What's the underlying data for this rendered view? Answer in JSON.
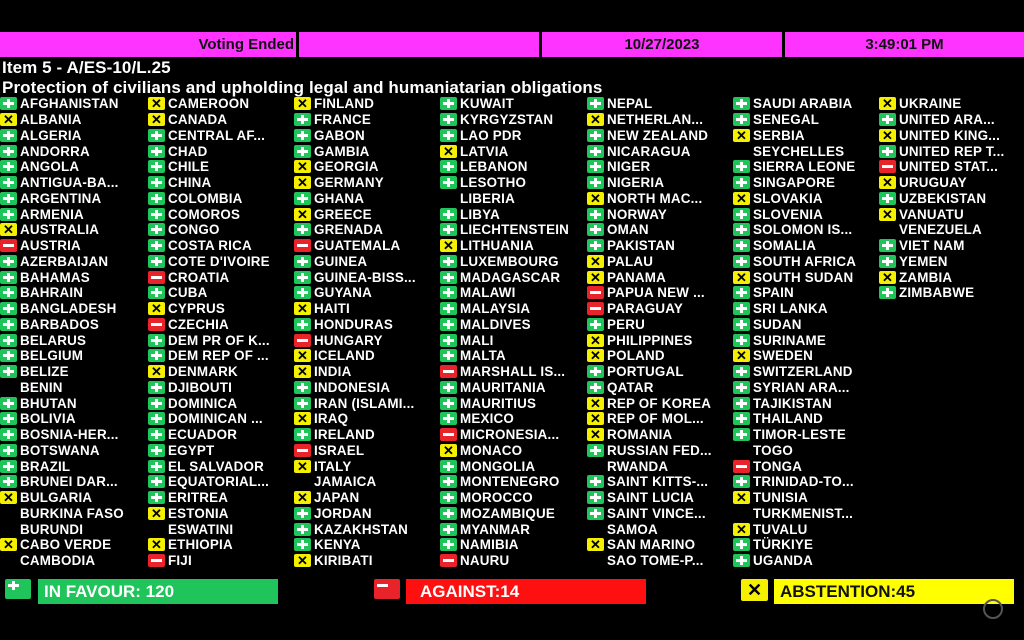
{
  "header": {
    "status": "Voting Ended",
    "blank": "",
    "date": "10/27/2023",
    "time": "3:49:01 PM"
  },
  "item": "Item 5 - A/ES-10/L.25",
  "resolution_title": "Protection of civilians and upholding legal and humaniatarian obligations",
  "vote_icons": {
    "Y": "plus-icon",
    "N": "minus-icon",
    "A": "x-icon"
  },
  "colors": {
    "header": "#ff33ff",
    "favour": "#1fc45a",
    "against": "#e8242a",
    "abstention": "#f4f000"
  },
  "columns": [
    [
      {
        "name": "AFGHANISTAN",
        "vote": "Y"
      },
      {
        "name": "ALBANIA",
        "vote": "A"
      },
      {
        "name": "ALGERIA",
        "vote": "Y"
      },
      {
        "name": "ANDORRA",
        "vote": "Y"
      },
      {
        "name": "ANGOLA",
        "vote": "Y"
      },
      {
        "name": "ANTIGUA-BA...",
        "vote": "Y"
      },
      {
        "name": "ARGENTINA",
        "vote": "Y"
      },
      {
        "name": "ARMENIA",
        "vote": "Y"
      },
      {
        "name": "AUSTRALIA",
        "vote": "A"
      },
      {
        "name": "AUSTRIA",
        "vote": "N"
      },
      {
        "name": "AZERBAIJAN",
        "vote": "Y"
      },
      {
        "name": "BAHAMAS",
        "vote": "Y"
      },
      {
        "name": "BAHRAIN",
        "vote": "Y"
      },
      {
        "name": "BANGLADESH",
        "vote": "Y"
      },
      {
        "name": "BARBADOS",
        "vote": "Y"
      },
      {
        "name": "BELARUS",
        "vote": "Y"
      },
      {
        "name": "BELGIUM",
        "vote": "Y"
      },
      {
        "name": "BELIZE",
        "vote": "Y"
      },
      {
        "name": "BENIN",
        "vote": ""
      },
      {
        "name": "BHUTAN",
        "vote": "Y"
      },
      {
        "name": "BOLIVIA",
        "vote": "Y"
      },
      {
        "name": "BOSNIA-HER...",
        "vote": "Y"
      },
      {
        "name": "BOTSWANA",
        "vote": "Y"
      },
      {
        "name": "BRAZIL",
        "vote": "Y"
      },
      {
        "name": "BRUNEI DAR...",
        "vote": "Y"
      },
      {
        "name": "BULGARIA",
        "vote": "A"
      },
      {
        "name": "BURKINA FASO",
        "vote": ""
      },
      {
        "name": "BURUNDI",
        "vote": ""
      },
      {
        "name": "CABO VERDE",
        "vote": "A"
      },
      {
        "name": "CAMBODIA",
        "vote": ""
      }
    ],
    [
      {
        "name": "CAMEROON",
        "vote": "A"
      },
      {
        "name": "CANADA",
        "vote": "A"
      },
      {
        "name": "CENTRAL AF...",
        "vote": "Y"
      },
      {
        "name": "CHAD",
        "vote": "Y"
      },
      {
        "name": "CHILE",
        "vote": "Y"
      },
      {
        "name": "CHINA",
        "vote": "Y"
      },
      {
        "name": "COLOMBIA",
        "vote": "Y"
      },
      {
        "name": "COMOROS",
        "vote": "Y"
      },
      {
        "name": "CONGO",
        "vote": "Y"
      },
      {
        "name": "COSTA RICA",
        "vote": "Y"
      },
      {
        "name": "COTE D'IVOIRE",
        "vote": "Y"
      },
      {
        "name": "CROATIA",
        "vote": "N"
      },
      {
        "name": "CUBA",
        "vote": "Y"
      },
      {
        "name": "CYPRUS",
        "vote": "A"
      },
      {
        "name": "CZECHIA",
        "vote": "N"
      },
      {
        "name": "DEM PR OF K...",
        "vote": "Y"
      },
      {
        "name": "DEM REP OF ...",
        "vote": "Y"
      },
      {
        "name": "DENMARK",
        "vote": "A"
      },
      {
        "name": "DJIBOUTI",
        "vote": "Y"
      },
      {
        "name": "DOMINICA",
        "vote": "Y"
      },
      {
        "name": "DOMINICAN ...",
        "vote": "Y"
      },
      {
        "name": "ECUADOR",
        "vote": "Y"
      },
      {
        "name": "EGYPT",
        "vote": "Y"
      },
      {
        "name": "EL SALVADOR",
        "vote": "Y"
      },
      {
        "name": "EQUATORIAL...",
        "vote": "Y"
      },
      {
        "name": "ERITREA",
        "vote": "Y"
      },
      {
        "name": "ESTONIA",
        "vote": "A"
      },
      {
        "name": "ESWATINI",
        "vote": ""
      },
      {
        "name": "ETHIOPIA",
        "vote": "A"
      },
      {
        "name": "FIJI",
        "vote": "N"
      }
    ],
    [
      {
        "name": "FINLAND",
        "vote": "A"
      },
      {
        "name": "FRANCE",
        "vote": "Y"
      },
      {
        "name": "GABON",
        "vote": "Y"
      },
      {
        "name": "GAMBIA",
        "vote": "Y"
      },
      {
        "name": "GEORGIA",
        "vote": "A"
      },
      {
        "name": "GERMANY",
        "vote": "A"
      },
      {
        "name": "GHANA",
        "vote": "Y"
      },
      {
        "name": "GREECE",
        "vote": "A"
      },
      {
        "name": "GRENADA",
        "vote": "Y"
      },
      {
        "name": "GUATEMALA",
        "vote": "N"
      },
      {
        "name": "GUINEA",
        "vote": "Y"
      },
      {
        "name": "GUINEA-BISS...",
        "vote": "Y"
      },
      {
        "name": "GUYANA",
        "vote": "Y"
      },
      {
        "name": "HAITI",
        "vote": "A"
      },
      {
        "name": "HONDURAS",
        "vote": "Y"
      },
      {
        "name": "HUNGARY",
        "vote": "N"
      },
      {
        "name": "ICELAND",
        "vote": "A"
      },
      {
        "name": "INDIA",
        "vote": "A"
      },
      {
        "name": "INDONESIA",
        "vote": "Y"
      },
      {
        "name": "IRAN (ISLAMI...",
        "vote": "Y"
      },
      {
        "name": "IRAQ",
        "vote": "A"
      },
      {
        "name": "IRELAND",
        "vote": "Y"
      },
      {
        "name": "ISRAEL",
        "vote": "N"
      },
      {
        "name": "ITALY",
        "vote": "A"
      },
      {
        "name": "JAMAICA",
        "vote": ""
      },
      {
        "name": "JAPAN",
        "vote": "A"
      },
      {
        "name": "JORDAN",
        "vote": "Y"
      },
      {
        "name": "KAZAKHSTAN",
        "vote": "Y"
      },
      {
        "name": "KENYA",
        "vote": "Y"
      },
      {
        "name": "KIRIBATI",
        "vote": "A"
      }
    ],
    [
      {
        "name": "KUWAIT",
        "vote": "Y"
      },
      {
        "name": "KYRGYZSTAN",
        "vote": "Y"
      },
      {
        "name": "LAO PDR",
        "vote": "Y"
      },
      {
        "name": "LATVIA",
        "vote": "A"
      },
      {
        "name": "LEBANON",
        "vote": "Y"
      },
      {
        "name": "LESOTHO",
        "vote": "Y"
      },
      {
        "name": "LIBERIA",
        "vote": ""
      },
      {
        "name": "LIBYA",
        "vote": "Y"
      },
      {
        "name": "LIECHTENSTEIN",
        "vote": "Y"
      },
      {
        "name": "LITHUANIA",
        "vote": "A"
      },
      {
        "name": "LUXEMBOURG",
        "vote": "Y"
      },
      {
        "name": "MADAGASCAR",
        "vote": "Y"
      },
      {
        "name": "MALAWI",
        "vote": "Y"
      },
      {
        "name": "MALAYSIA",
        "vote": "Y"
      },
      {
        "name": "MALDIVES",
        "vote": "Y"
      },
      {
        "name": "MALI",
        "vote": "Y"
      },
      {
        "name": "MALTA",
        "vote": "Y"
      },
      {
        "name": "MARSHALL IS...",
        "vote": "N"
      },
      {
        "name": "MAURITANIA",
        "vote": "Y"
      },
      {
        "name": "MAURITIUS",
        "vote": "Y"
      },
      {
        "name": "MEXICO",
        "vote": "Y"
      },
      {
        "name": "MICRONESIA...",
        "vote": "N"
      },
      {
        "name": "MONACO",
        "vote": "A"
      },
      {
        "name": "MONGOLIA",
        "vote": "Y"
      },
      {
        "name": "MONTENEGRO",
        "vote": "Y"
      },
      {
        "name": "MOROCCO",
        "vote": "Y"
      },
      {
        "name": "MOZAMBIQUE",
        "vote": "Y"
      },
      {
        "name": "MYANMAR",
        "vote": "Y"
      },
      {
        "name": "NAMIBIA",
        "vote": "Y"
      },
      {
        "name": "NAURU",
        "vote": "N"
      }
    ],
    [
      {
        "name": "NEPAL",
        "vote": "Y"
      },
      {
        "name": "NETHERLAN...",
        "vote": "A"
      },
      {
        "name": "NEW ZEALAND",
        "vote": "Y"
      },
      {
        "name": "NICARAGUA",
        "vote": "Y"
      },
      {
        "name": "NIGER",
        "vote": "Y"
      },
      {
        "name": "NIGERIA",
        "vote": "Y"
      },
      {
        "name": "NORTH MAC...",
        "vote": "A"
      },
      {
        "name": "NORWAY",
        "vote": "Y"
      },
      {
        "name": "OMAN",
        "vote": "Y"
      },
      {
        "name": "PAKISTAN",
        "vote": "Y"
      },
      {
        "name": "PALAU",
        "vote": "A"
      },
      {
        "name": "PANAMA",
        "vote": "A"
      },
      {
        "name": "PAPUA NEW ...",
        "vote": "N"
      },
      {
        "name": "PARAGUAY",
        "vote": "N"
      },
      {
        "name": "PERU",
        "vote": "Y"
      },
      {
        "name": "PHILIPPINES",
        "vote": "A"
      },
      {
        "name": "POLAND",
        "vote": "A"
      },
      {
        "name": "PORTUGAL",
        "vote": "Y"
      },
      {
        "name": "QATAR",
        "vote": "Y"
      },
      {
        "name": "REP OF KOREA",
        "vote": "A"
      },
      {
        "name": "REP OF MOL...",
        "vote": "A"
      },
      {
        "name": "ROMANIA",
        "vote": "A"
      },
      {
        "name": "RUSSIAN FED...",
        "vote": "Y"
      },
      {
        "name": "RWANDA",
        "vote": ""
      },
      {
        "name": "SAINT KITTS-...",
        "vote": "Y"
      },
      {
        "name": "SAINT LUCIA",
        "vote": "Y"
      },
      {
        "name": "SAINT VINCE...",
        "vote": "Y"
      },
      {
        "name": "SAMOA",
        "vote": ""
      },
      {
        "name": "SAN MARINO",
        "vote": "A"
      },
      {
        "name": "SAO TOME-P...",
        "vote": ""
      }
    ],
    [
      {
        "name": "SAUDI ARABIA",
        "vote": "Y"
      },
      {
        "name": "SENEGAL",
        "vote": "Y"
      },
      {
        "name": "SERBIA",
        "vote": "A"
      },
      {
        "name": "SEYCHELLES",
        "vote": ""
      },
      {
        "name": "SIERRA LEONE",
        "vote": "Y"
      },
      {
        "name": "SINGAPORE",
        "vote": "Y"
      },
      {
        "name": "SLOVAKIA",
        "vote": "A"
      },
      {
        "name": "SLOVENIA",
        "vote": "Y"
      },
      {
        "name": "SOLOMON IS...",
        "vote": "Y"
      },
      {
        "name": "SOMALIA",
        "vote": "Y"
      },
      {
        "name": "SOUTH AFRICA",
        "vote": "Y"
      },
      {
        "name": "SOUTH SUDAN",
        "vote": "A"
      },
      {
        "name": "SPAIN",
        "vote": "Y"
      },
      {
        "name": "SRI LANKA",
        "vote": "Y"
      },
      {
        "name": "SUDAN",
        "vote": "Y"
      },
      {
        "name": "SURINAME",
        "vote": "Y"
      },
      {
        "name": "SWEDEN",
        "vote": "A"
      },
      {
        "name": "SWITZERLAND",
        "vote": "Y"
      },
      {
        "name": "SYRIAN ARA...",
        "vote": "Y"
      },
      {
        "name": "TAJIKISTAN",
        "vote": "Y"
      },
      {
        "name": "THAILAND",
        "vote": "Y"
      },
      {
        "name": "TIMOR-LESTE",
        "vote": "Y"
      },
      {
        "name": "TOGO",
        "vote": ""
      },
      {
        "name": "TONGA",
        "vote": "N"
      },
      {
        "name": "TRINIDAD-TO...",
        "vote": "Y"
      },
      {
        "name": "TUNISIA",
        "vote": "A"
      },
      {
        "name": "TURKMENIST...",
        "vote": ""
      },
      {
        "name": "TUVALU",
        "vote": "A"
      },
      {
        "name": "TÜRKIYE",
        "vote": "Y"
      },
      {
        "name": "UGANDA",
        "vote": "Y"
      }
    ],
    [
      {
        "name": "UKRAINE",
        "vote": "A"
      },
      {
        "name": "UNITED ARA...",
        "vote": "Y"
      },
      {
        "name": "UNITED KING...",
        "vote": "A"
      },
      {
        "name": "UNITED REP T...",
        "vote": "Y"
      },
      {
        "name": "UNITED STAT...",
        "vote": "N"
      },
      {
        "name": "URUGUAY",
        "vote": "A"
      },
      {
        "name": "UZBEKISTAN",
        "vote": "Y"
      },
      {
        "name": "VANUATU",
        "vote": "A"
      },
      {
        "name": "VENEZUELA",
        "vote": ""
      },
      {
        "name": "VIET NAM",
        "vote": "Y"
      },
      {
        "name": "YEMEN",
        "vote": "Y"
      },
      {
        "name": "ZAMBIA",
        "vote": "A"
      },
      {
        "name": "ZIMBABWE",
        "vote": "Y"
      }
    ]
  ],
  "summary": {
    "in_favour": "IN FAVOUR: 120",
    "against": "AGAINST:14",
    "abstention": "ABSTENTION:45"
  }
}
